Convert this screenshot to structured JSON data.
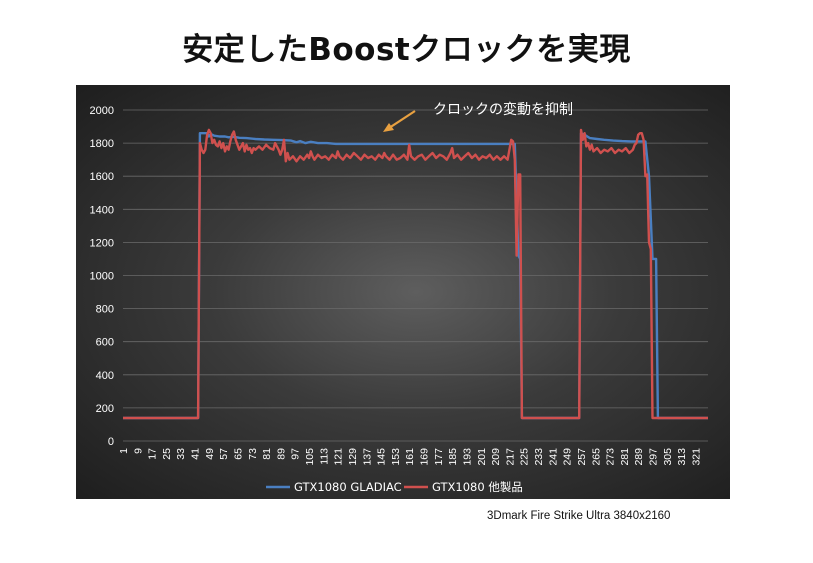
{
  "page": {
    "title": "安定したBoostクロックを実現",
    "source_note": "3Dmark Fire Strike Ultra 3840x2160"
  },
  "chart_data": {
    "type": "line",
    "title": "",
    "xlabel": "",
    "ylabel": "",
    "ylim": [
      0,
      2000
    ],
    "yticks": [
      0,
      200,
      400,
      600,
      800,
      1000,
      1200,
      1400,
      1600,
      1800,
      2000
    ],
    "xlim": [
      1,
      328
    ],
    "xticks": [
      1,
      9,
      17,
      25,
      33,
      41,
      49,
      57,
      65,
      73,
      81,
      89,
      97,
      105,
      113,
      121,
      129,
      137,
      145,
      153,
      161,
      169,
      177,
      185,
      193,
      201,
      209,
      217,
      225,
      233,
      241,
      249,
      257,
      265,
      273,
      281,
      289,
      297,
      305,
      313,
      321
    ],
    "grid": "horizontal",
    "legend_position": "bottom",
    "annotation": "クロックの変動を抑制",
    "series": [
      {
        "name": "GTX1080 GLADIAC",
        "color": "#4a7fc1",
        "points": [
          [
            1,
            139
          ],
          [
            43,
            139
          ],
          [
            44,
            1860
          ],
          [
            48,
            1860
          ],
          [
            49,
            1840
          ],
          [
            50,
            1855
          ],
          [
            52,
            1845
          ],
          [
            55,
            1840
          ],
          [
            58,
            1840
          ],
          [
            60,
            1835
          ],
          [
            63,
            1838
          ],
          [
            66,
            1832
          ],
          [
            70,
            1830
          ],
          [
            75,
            1825
          ],
          [
            80,
            1822
          ],
          [
            85,
            1820
          ],
          [
            90,
            1818
          ],
          [
            95,
            1815
          ],
          [
            98,
            1805
          ],
          [
            100,
            1812
          ],
          [
            103,
            1800
          ],
          [
            106,
            1808
          ],
          [
            110,
            1800
          ],
          [
            115,
            1800
          ],
          [
            120,
            1795
          ],
          [
            125,
            1795
          ],
          [
            130,
            1795
          ],
          [
            140,
            1795
          ],
          [
            150,
            1795
          ],
          [
            160,
            1795
          ],
          [
            170,
            1795
          ],
          [
            180,
            1795
          ],
          [
            190,
            1795
          ],
          [
            200,
            1795
          ],
          [
            210,
            1795
          ],
          [
            218,
            1795
          ],
          [
            220,
            1795
          ],
          [
            222,
            1120
          ],
          [
            223,
            1100
          ],
          [
            224,
            139
          ],
          [
            256,
            139
          ],
          [
            257,
            1860
          ],
          [
            259,
            1850
          ],
          [
            262,
            1830
          ],
          [
            266,
            1825
          ],
          [
            270,
            1820
          ],
          [
            275,
            1815
          ],
          [
            280,
            1812
          ],
          [
            285,
            1810
          ],
          [
            291,
            1810
          ],
          [
            293,
            1810
          ],
          [
            295,
            1600
          ],
          [
            297,
            1100
          ],
          [
            299,
            1100
          ],
          [
            300,
            139
          ],
          [
            328,
            139
          ]
        ]
      },
      {
        "name": "GTX1080 他製品",
        "color": "#d0504e",
        "points": [
          [
            1,
            139
          ],
          [
            43,
            139
          ],
          [
            44,
            1800
          ],
          [
            45,
            1760
          ],
          [
            46,
            1740
          ],
          [
            47,
            1760
          ],
          [
            48,
            1850
          ],
          [
            49,
            1880
          ],
          [
            50,
            1860
          ],
          [
            51,
            1800
          ],
          [
            52,
            1820
          ],
          [
            53,
            1790
          ],
          [
            54,
            1780
          ],
          [
            55,
            1810
          ],
          [
            56,
            1770
          ],
          [
            57,
            1800
          ],
          [
            58,
            1750
          ],
          [
            59,
            1780
          ],
          [
            60,
            1760
          ],
          [
            61,
            1810
          ],
          [
            62,
            1850
          ],
          [
            63,
            1870
          ],
          [
            64,
            1820
          ],
          [
            65,
            1790
          ],
          [
            66,
            1760
          ],
          [
            67,
            1780
          ],
          [
            68,
            1800
          ],
          [
            69,
            1750
          ],
          [
            70,
            1790
          ],
          [
            71,
            1760
          ],
          [
            72,
            1770
          ],
          [
            73,
            1740
          ],
          [
            74,
            1770
          ],
          [
            75,
            1760
          ],
          [
            77,
            1780
          ],
          [
            79,
            1760
          ],
          [
            81,
            1790
          ],
          [
            83,
            1770
          ],
          [
            85,
            1760
          ],
          [
            86,
            1800
          ],
          [
            87,
            1780
          ],
          [
            88,
            1760
          ],
          [
            89,
            1730
          ],
          [
            90,
            1760
          ],
          [
            91,
            1820
          ],
          [
            92,
            1690
          ],
          [
            93,
            1740
          ],
          [
            94,
            1700
          ],
          [
            96,
            1720
          ],
          [
            98,
            1690
          ],
          [
            100,
            1720
          ],
          [
            102,
            1700
          ],
          [
            104,
            1730
          ],
          [
            105,
            1710
          ],
          [
            106,
            1750
          ],
          [
            107,
            1720
          ],
          [
            108,
            1700
          ],
          [
            110,
            1730
          ],
          [
            112,
            1710
          ],
          [
            114,
            1720
          ],
          [
            116,
            1700
          ],
          [
            118,
            1730
          ],
          [
            120,
            1710
          ],
          [
            121,
            1750
          ],
          [
            122,
            1720
          ],
          [
            124,
            1700
          ],
          [
            126,
            1730
          ],
          [
            128,
            1710
          ],
          [
            130,
            1740
          ],
          [
            132,
            1720
          ],
          [
            134,
            1700
          ],
          [
            136,
            1730
          ],
          [
            138,
            1710
          ],
          [
            140,
            1720
          ],
          [
            142,
            1700
          ],
          [
            144,
            1730
          ],
          [
            146,
            1710
          ],
          [
            147,
            1740
          ],
          [
            148,
            1720
          ],
          [
            150,
            1700
          ],
          [
            152,
            1730
          ],
          [
            154,
            1700
          ],
          [
            156,
            1710
          ],
          [
            158,
            1730
          ],
          [
            160,
            1700
          ],
          [
            161,
            1790
          ],
          [
            162,
            1720
          ],
          [
            164,
            1700
          ],
          [
            166,
            1720
          ],
          [
            168,
            1730
          ],
          [
            170,
            1700
          ],
          [
            172,
            1720
          ],
          [
            174,
            1740
          ],
          [
            176,
            1710
          ],
          [
            178,
            1730
          ],
          [
            180,
            1720
          ],
          [
            182,
            1700
          ],
          [
            184,
            1740
          ],
          [
            185,
            1770
          ],
          [
            186,
            1710
          ],
          [
            188,
            1730
          ],
          [
            190,
            1700
          ],
          [
            192,
            1720
          ],
          [
            194,
            1740
          ],
          [
            196,
            1710
          ],
          [
            198,
            1730
          ],
          [
            200,
            1700
          ],
          [
            202,
            1720
          ],
          [
            204,
            1710
          ],
          [
            206,
            1730
          ],
          [
            208,
            1700
          ],
          [
            210,
            1720
          ],
          [
            212,
            1700
          ],
          [
            214,
            1720
          ],
          [
            216,
            1700
          ],
          [
            218,
            1820
          ],
          [
            219,
            1810
          ],
          [
            220,
            1700
          ],
          [
            221,
            1120
          ],
          [
            222,
            1610
          ],
          [
            223,
            1610
          ],
          [
            224,
            139
          ],
          [
            256,
            139
          ],
          [
            257,
            1880
          ],
          [
            258,
            1820
          ],
          [
            259,
            1860
          ],
          [
            260,
            1780
          ],
          [
            261,
            1800
          ],
          [
            262,
            1760
          ],
          [
            263,
            1790
          ],
          [
            264,
            1750
          ],
          [
            266,
            1770
          ],
          [
            268,
            1740
          ],
          [
            270,
            1760
          ],
          [
            272,
            1750
          ],
          [
            274,
            1770
          ],
          [
            276,
            1740
          ],
          [
            278,
            1760
          ],
          [
            280,
            1750
          ],
          [
            282,
            1770
          ],
          [
            284,
            1740
          ],
          [
            286,
            1760
          ],
          [
            287,
            1790
          ],
          [
            288,
            1800
          ],
          [
            289,
            1850
          ],
          [
            290,
            1860
          ],
          [
            291,
            1860
          ],
          [
            292,
            1820
          ],
          [
            293,
            1600
          ],
          [
            294,
            1610
          ],
          [
            295,
            1200
          ],
          [
            296,
            1160
          ],
          [
            297,
            139
          ],
          [
            328,
            139
          ]
        ]
      }
    ]
  }
}
